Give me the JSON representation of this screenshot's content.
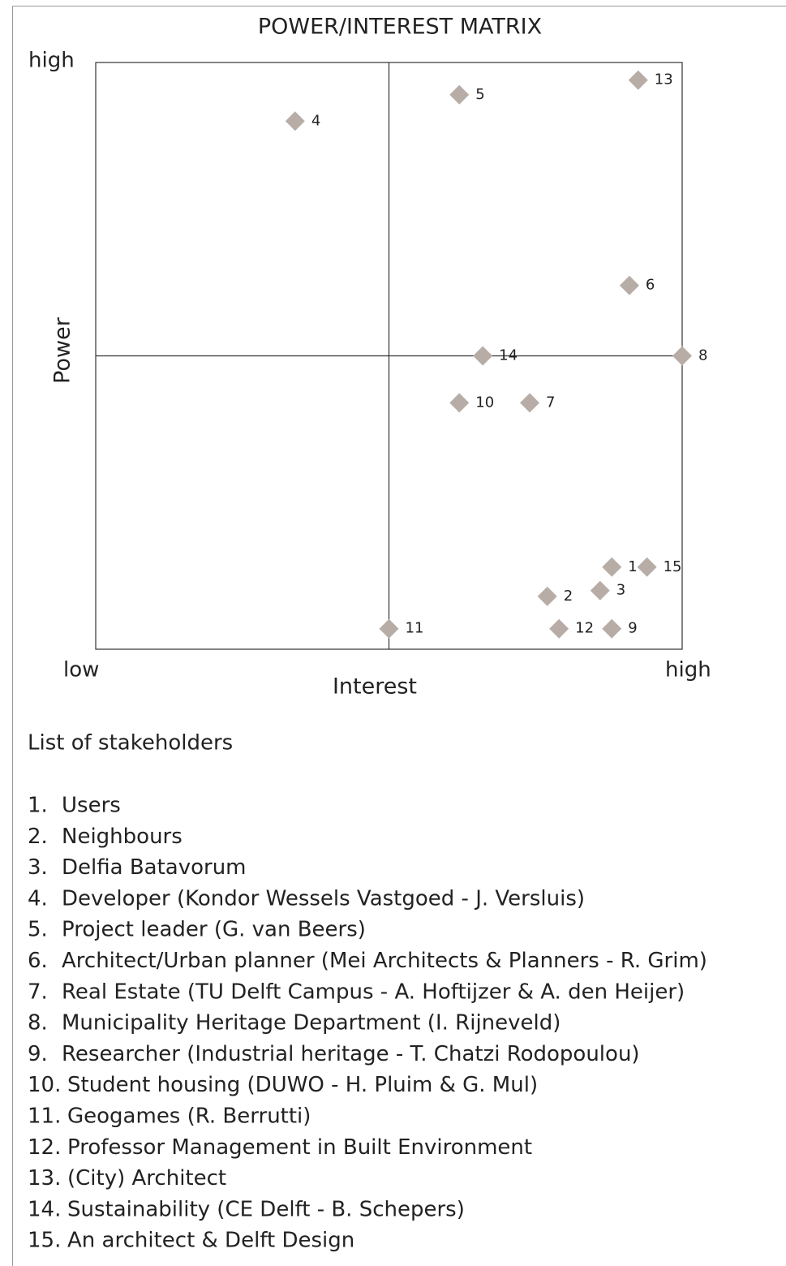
{
  "chart_data": {
    "type": "scatter",
    "title": "POWER/INTEREST MATRIX",
    "x_label": "Interest",
    "y_label": "Power",
    "x_low_label": "low",
    "x_high_label": "high",
    "y_high_label": "high",
    "xlim": [
      0,
      10
    ],
    "ylim": [
      0,
      10
    ],
    "x_divider": 5,
    "y_divider": 5,
    "color": "#b8ada6",
    "point_labels": [
      "1",
      "2",
      "3",
      "4",
      "5",
      "6",
      "7",
      "8",
      "9",
      "10",
      "11",
      "12",
      "13",
      "14",
      "15"
    ],
    "x": [
      8.8,
      7.7,
      8.6,
      3.4,
      6.2,
      9.1,
      7.4,
      10,
      8.8,
      6.2,
      5.0,
      7.9,
      9.25,
      6.6,
      9.4
    ],
    "y": [
      1.4,
      0.9,
      1.0,
      9.0,
      9.45,
      6.2,
      4.2,
      5.0,
      0.35,
      4.2,
      0.35,
      0.35,
      9.7,
      5.0,
      1.4
    ]
  },
  "list": {
    "title": "List of stakeholders",
    "items": [
      {
        "number": "1.",
        "name": "Users"
      },
      {
        "number": "2.",
        "name": "Neighbours"
      },
      {
        "number": "3.",
        "name": "Delfia Batavorum"
      },
      {
        "number": "4.",
        "name": "Developer (Kondor Wessels Vastgoed - J. Versluis)"
      },
      {
        "number": "5.",
        "name": "Project leader (G. van Beers)"
      },
      {
        "number": "6.",
        "name": "Architect/Urban planner (Mei Architects & Planners - R. Grim)"
      },
      {
        "number": "7.",
        "name": "Real Estate (TU Delft Campus - A. Hoftijzer & A. den Heijer)"
      },
      {
        "number": "8.",
        "name": "Municipality Heritage Department (I. Rijneveld)"
      },
      {
        "number": "9.",
        "name": "Researcher (Industrial heritage - T. Chatzi Rodopoulou)"
      },
      {
        "number": "10.",
        "name": "Student housing (DUWO - H. Pluim & G. Mul)"
      },
      {
        "number": "11.",
        "name": "Geogames (R. Berrutti)"
      },
      {
        "number": "12.",
        "name": "Professor Management in Built Environment"
      },
      {
        "number": "13.",
        "name": "(City) Architect"
      },
      {
        "number": "14.",
        "name": "Sustainability (CE Delft - B. Schepers)"
      },
      {
        "number": "15.",
        "name": "An architect & Delft Design"
      }
    ]
  }
}
